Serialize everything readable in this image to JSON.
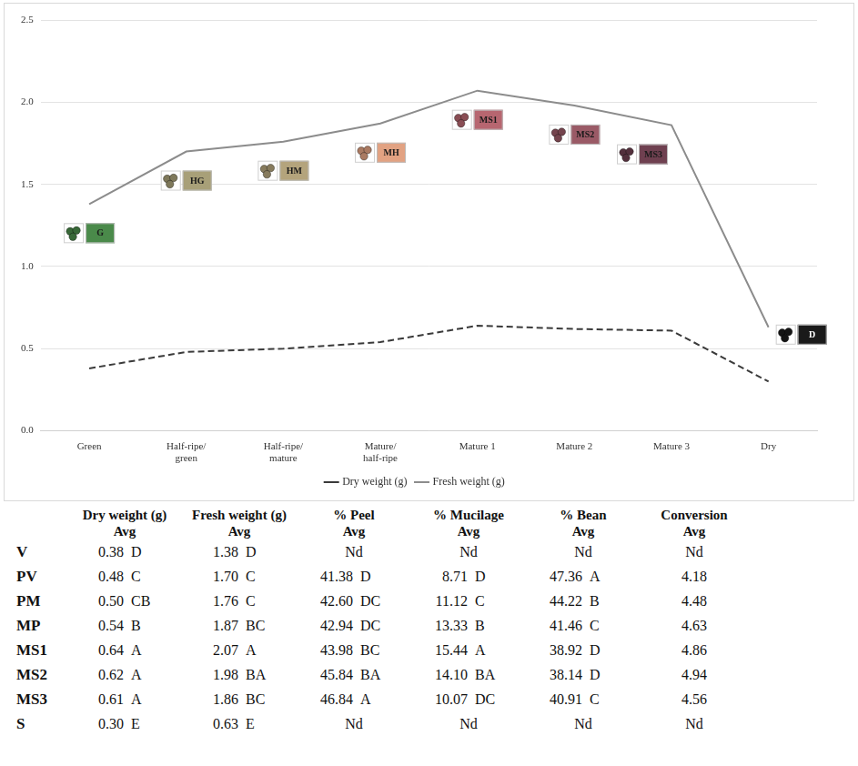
{
  "chart_data": {
    "type": "line",
    "categories": [
      "Green",
      "Half-ripe/green",
      "Half-ripe/mature",
      "Mature/half-ripe",
      "Mature 1",
      "Mature 2",
      "Mature 3",
      "Dry"
    ],
    "series": [
      {
        "name": "Dry weight (g)",
        "color": "#3a3a3a",
        "line_style": "dashed",
        "marker": "none",
        "values": [
          0.38,
          0.48,
          0.5,
          0.54,
          0.64,
          0.62,
          0.61,
          0.3
        ]
      },
      {
        "name": "Fresh weight (g)",
        "color": "#8c8c8c",
        "line_style": "solid",
        "marker": "none",
        "values": [
          1.38,
          1.7,
          1.76,
          1.87,
          2.07,
          1.98,
          1.86,
          0.63
        ]
      }
    ],
    "ylim": [
      0,
      2.5
    ],
    "yticks": [
      {
        "value": 0,
        "label": "0.0"
      },
      0.5,
      {
        "value": 1,
        "label": "1.0"
      },
      1.5,
      {
        "value": 2,
        "label": "2.0"
      },
      2.5
    ],
    "grid": true,
    "legend": "bottom",
    "annotations": [
      {
        "category": "Green",
        "text": "G",
        "color": "#4a8a4a"
      },
      {
        "category": "Half-ripe/green",
        "text": "HG",
        "color": "#a8a078"
      },
      {
        "category": "Half-ripe/mature",
        "text": "HM",
        "color": "#b4a47c"
      },
      {
        "category": "Mature/half-ripe",
        "text": "MH",
        "color": "#e2a282"
      },
      {
        "category": "Mature 1",
        "text": "MS1",
        "color": "#b76670"
      },
      {
        "category": "Mature 2",
        "text": "MS2",
        "color": "#9a5a66"
      },
      {
        "category": "Mature 3",
        "text": "MS3",
        "color": "#6f4050"
      },
      {
        "category": "Dry",
        "text": "D",
        "color": "#1a1a1a"
      }
    ]
  },
  "table": {
    "columns": [
      "Dry weight (g)",
      "Fresh weight (g)",
      "% Peel",
      "% Mucilage",
      "% Bean",
      "Conversion"
    ],
    "subheader": "Avg",
    "rows": [
      {
        "label": "V",
        "cells": [
          {
            "value": "0.38",
            "group": "D"
          },
          {
            "value": "1.38",
            "group": "D"
          },
          {
            "value": "Nd"
          },
          {
            "value": "Nd"
          },
          {
            "value": "Nd"
          },
          {
            "value": "Nd"
          }
        ]
      },
      {
        "label": "PV",
        "cells": [
          {
            "value": "0.48",
            "group": "C"
          },
          {
            "value": "1.70",
            "group": "C"
          },
          {
            "value": "41.38",
            "group": "D"
          },
          {
            "value": "8.71",
            "group": "D"
          },
          {
            "value": "47.36",
            "group": "A"
          },
          {
            "value": "4.18"
          }
        ]
      },
      {
        "label": "PM",
        "cells": [
          {
            "value": "0.50",
            "group": "CB"
          },
          {
            "value": "1.76",
            "group": "C"
          },
          {
            "value": "42.60",
            "group": "DC"
          },
          {
            "value": "11.12",
            "group": "C"
          },
          {
            "value": "44.22",
            "group": "B"
          },
          {
            "value": "4.48"
          }
        ]
      },
      {
        "label": "MP",
        "cells": [
          {
            "value": "0.54",
            "group": "B"
          },
          {
            "value": "1.87",
            "group": "BC"
          },
          {
            "value": "42.94",
            "group": "DC"
          },
          {
            "value": "13.33",
            "group": "B"
          },
          {
            "value": "41.46",
            "group": "C"
          },
          {
            "value": "4.63"
          }
        ]
      },
      {
        "label": "MS1",
        "cells": [
          {
            "value": "0.64",
            "group": "A"
          },
          {
            "value": "2.07",
            "group": "A"
          },
          {
            "value": "43.98",
            "group": "BC"
          },
          {
            "value": "15.44",
            "group": "A"
          },
          {
            "value": "38.92",
            "group": "D"
          },
          {
            "value": "4.86"
          }
        ]
      },
      {
        "label": "MS2",
        "cells": [
          {
            "value": "0.62",
            "group": "A"
          },
          {
            "value": "1.98",
            "group": "BA"
          },
          {
            "value": "45.84",
            "group": "BA"
          },
          {
            "value": "14.10",
            "group": "BA"
          },
          {
            "value": "38.14",
            "group": "D"
          },
          {
            "value": "4.94"
          }
        ]
      },
      {
        "label": "MS3",
        "cells": [
          {
            "value": "0.61",
            "group": "A"
          },
          {
            "value": "1.86",
            "group": "BC"
          },
          {
            "value": "46.84",
            "group": "A"
          },
          {
            "value": "10.07",
            "group": "DC"
          },
          {
            "value": "40.91",
            "group": "C"
          },
          {
            "value": "4.56"
          }
        ]
      },
      {
        "label": "S",
        "cells": [
          {
            "value": "0.30",
            "group": "E"
          },
          {
            "value": "0.63",
            "group": "E"
          },
          {
            "value": "Nd"
          },
          {
            "value": "Nd"
          },
          {
            "value": "Nd"
          },
          {
            "value": "Nd"
          }
        ]
      }
    ]
  }
}
